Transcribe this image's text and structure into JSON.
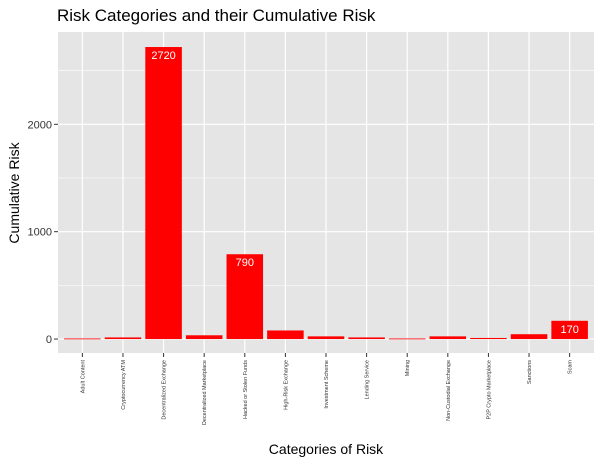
{
  "chart_data": {
    "type": "bar",
    "title": "Risk Categories and their Cumulative Risk",
    "xlabel": "Categories of Risk",
    "ylabel": "Cumulative Risk",
    "categories": [
      "Adult Content",
      "Cryptocurrency ATM",
      "Decentralized Exchange",
      "Decentralized Marketplace",
      "Hacked or Stolen Funds",
      "High-Risk Exchange",
      "Investment Scheme",
      "Lending Service",
      "Mining",
      "Non-Custodial Exchange",
      "P2P Crypto Marketplace",
      "Sanctions",
      "Scam"
    ],
    "values": [
      5,
      15,
      2720,
      35,
      790,
      80,
      25,
      15,
      5,
      25,
      10,
      45,
      170
    ],
    "data_labels": [
      "",
      "",
      "2720",
      "",
      "790",
      "",
      "",
      "",
      "",
      "",
      "",
      "",
      "170"
    ],
    "ylim": [
      -130,
      2860
    ],
    "yticks": [
      0,
      1000,
      2000
    ],
    "ytick_labels": [
      "0",
      "1000",
      "2000"
    ],
    "grid": true,
    "legend": "none",
    "colors": {
      "bar": "#ff0000",
      "panel": "#e5e5e5",
      "grid": "#ffffff"
    }
  }
}
